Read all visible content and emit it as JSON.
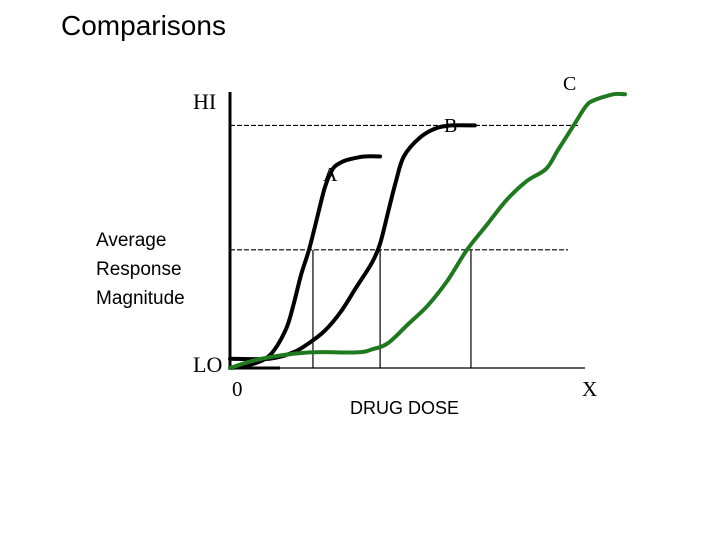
{
  "slide": {
    "title": "Comparisons"
  },
  "chart_data": {
    "type": "line",
    "title": "",
    "xlabel": "DRUG DOSE",
    "ylabel_lines": [
      "Average",
      "Response",
      "Magnitude"
    ],
    "y_tick_labels": {
      "high": "HI",
      "low": "LO"
    },
    "x_tick_labels": {
      "origin": "0",
      "end": "X"
    },
    "xlim": [
      0,
      100
    ],
    "ylim": [
      0,
      100
    ],
    "reference_lines": {
      "max_response": 78,
      "half_response": 38
    },
    "ec50_markers": [
      {
        "series": "A",
        "x": 21
      },
      {
        "series": "B",
        "x": 38
      },
      {
        "series": "C",
        "x": 61
      }
    ],
    "series": [
      {
        "name": "A",
        "color": "#000000",
        "x": [
          0,
          5,
          10,
          14,
          16,
          18,
          20,
          22,
          24,
          26,
          28,
          30,
          34,
          38
        ],
        "y": [
          0,
          1,
          4,
          12,
          20,
          30,
          38,
          48,
          58,
          64,
          66,
          67,
          68,
          68
        ]
      },
      {
        "name": "B",
        "color": "#000000",
        "x": [
          0,
          10,
          16,
          20,
          24,
          28,
          32,
          36,
          38,
          40,
          42,
          44,
          48,
          52,
          56,
          62
        ],
        "y": [
          3,
          3,
          5,
          8,
          12,
          18,
          26,
          34,
          40,
          50,
          60,
          68,
          74,
          77,
          78,
          78
        ]
      },
      {
        "name": "C",
        "color": "#1f7a1f",
        "x": [
          0,
          8,
          20,
          32,
          36,
          40,
          45,
          50,
          55,
          60,
          65,
          70,
          75,
          80,
          83,
          87,
          90,
          92,
          97,
          100
        ],
        "y": [
          0,
          3,
          5,
          5,
          6,
          8,
          14,
          20,
          28,
          38,
          46,
          54,
          60,
          64,
          70,
          78,
          84,
          86,
          88,
          88
        ]
      }
    ]
  }
}
